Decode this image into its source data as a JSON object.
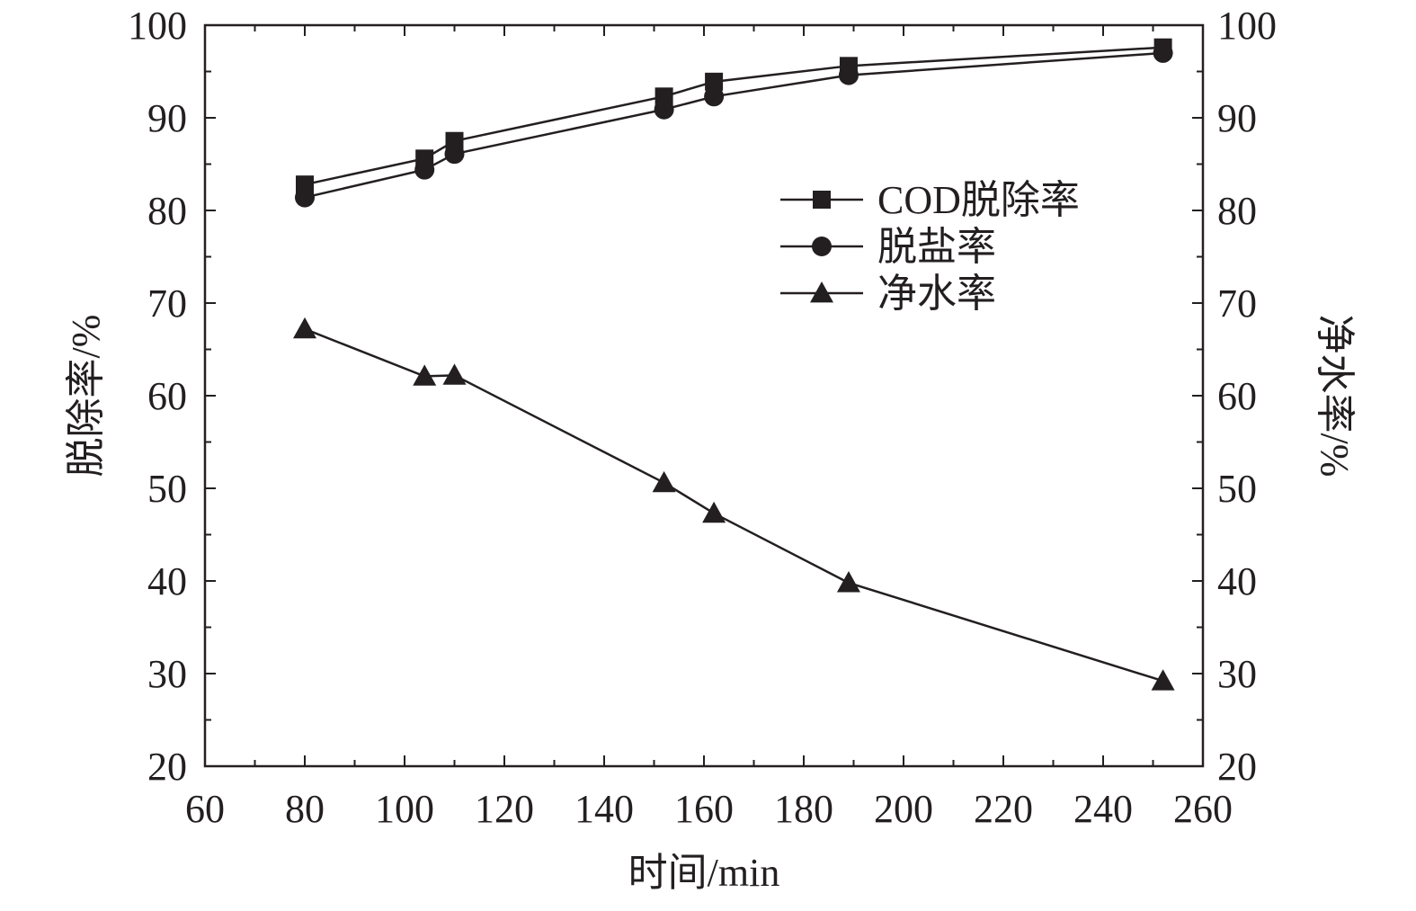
{
  "chart_data": {
    "type": "line",
    "title": "",
    "xlabel": "时间/min",
    "ylabel": "脱除率/%",
    "y2label": "净水率/%",
    "xlim": [
      60,
      260
    ],
    "ylim": [
      20,
      100
    ],
    "y2lim": [
      20,
      100
    ],
    "x_ticks": [
      60,
      80,
      100,
      120,
      140,
      160,
      180,
      200,
      220,
      240,
      260
    ],
    "y_ticks": [
      20,
      30,
      40,
      50,
      60,
      70,
      80,
      90,
      100
    ],
    "y2_ticks": [
      20,
      30,
      40,
      50,
      60,
      70,
      80,
      90,
      100
    ],
    "grid": false,
    "legend_position": "upper-right-inside",
    "line_color": "#231f20",
    "series": [
      {
        "name": "COD脱除率",
        "marker": "square",
        "axis": "left",
        "x": [
          80,
          104,
          110,
          152,
          162,
          189,
          252
        ],
        "values": [
          82.8,
          85.6,
          87.5,
          92.3,
          93.9,
          95.6,
          97.6
        ]
      },
      {
        "name": "脱盐率",
        "marker": "circle",
        "axis": "left",
        "x": [
          80,
          104,
          110,
          152,
          162,
          189,
          252
        ],
        "values": [
          81.4,
          84.4,
          86.1,
          90.9,
          92.3,
          94.6,
          97.0
        ]
      },
      {
        "name": "净水率",
        "marker": "triangle",
        "axis": "right",
        "x": [
          80,
          104,
          110,
          152,
          162,
          189,
          252
        ],
        "values": [
          67.2,
          62.1,
          62.2,
          50.6,
          47.3,
          39.8,
          29.2
        ]
      }
    ]
  }
}
